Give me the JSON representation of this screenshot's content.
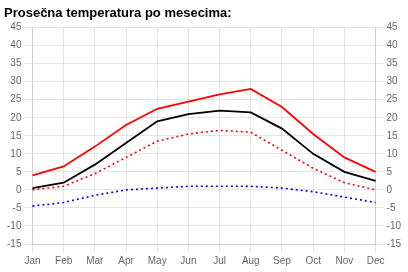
{
  "chart_data": {
    "type": "line",
    "title": "Prosečna temperatura po mesecima:",
    "categories": [
      "Jan",
      "Feb",
      "Mar",
      "Apr",
      "May",
      "Jun",
      "Jul",
      "Aug",
      "Sep",
      "Oct",
      "Nov",
      "Dec"
    ],
    "series": [
      {
        "color": "red",
        "line_style": "solid",
        "values": [
          4.0,
          6.5,
          12.0,
          18.0,
          22.5,
          24.5,
          26.5,
          28.0,
          23.0,
          15.5,
          9.0,
          5.0
        ]
      },
      {
        "color": "black",
        "line_style": "solid",
        "values": [
          0.5,
          2.0,
          7.0,
          13.0,
          19.0,
          21.0,
          22.0,
          21.5,
          17.0,
          10.0,
          5.0,
          2.5
        ]
      },
      {
        "color": "red",
        "line_style": "dotted",
        "values": [
          0.0,
          1.0,
          4.5,
          9.0,
          13.5,
          15.5,
          16.5,
          16.0,
          11.0,
          6.0,
          2.0,
          0.0
        ]
      },
      {
        "color": "blue",
        "line_style": "dotted",
        "values": [
          -4.5,
          -3.5,
          -1.5,
          0.0,
          0.5,
          1.0,
          1.0,
          1.0,
          0.5,
          -0.5,
          -2.0,
          -3.5
        ]
      }
    ],
    "ylim": [
      -15,
      45
    ],
    "yticks": [
      -15,
      -10,
      -5,
      0,
      5,
      10,
      15,
      20,
      25,
      30,
      35,
      40,
      45
    ],
    "y2lim": [
      -15,
      45
    ],
    "y2ticks": [
      -15,
      -10,
      -5,
      0,
      5,
      10,
      15,
      20,
      25,
      30,
      35,
      40,
      45
    ],
    "grid": true
  }
}
